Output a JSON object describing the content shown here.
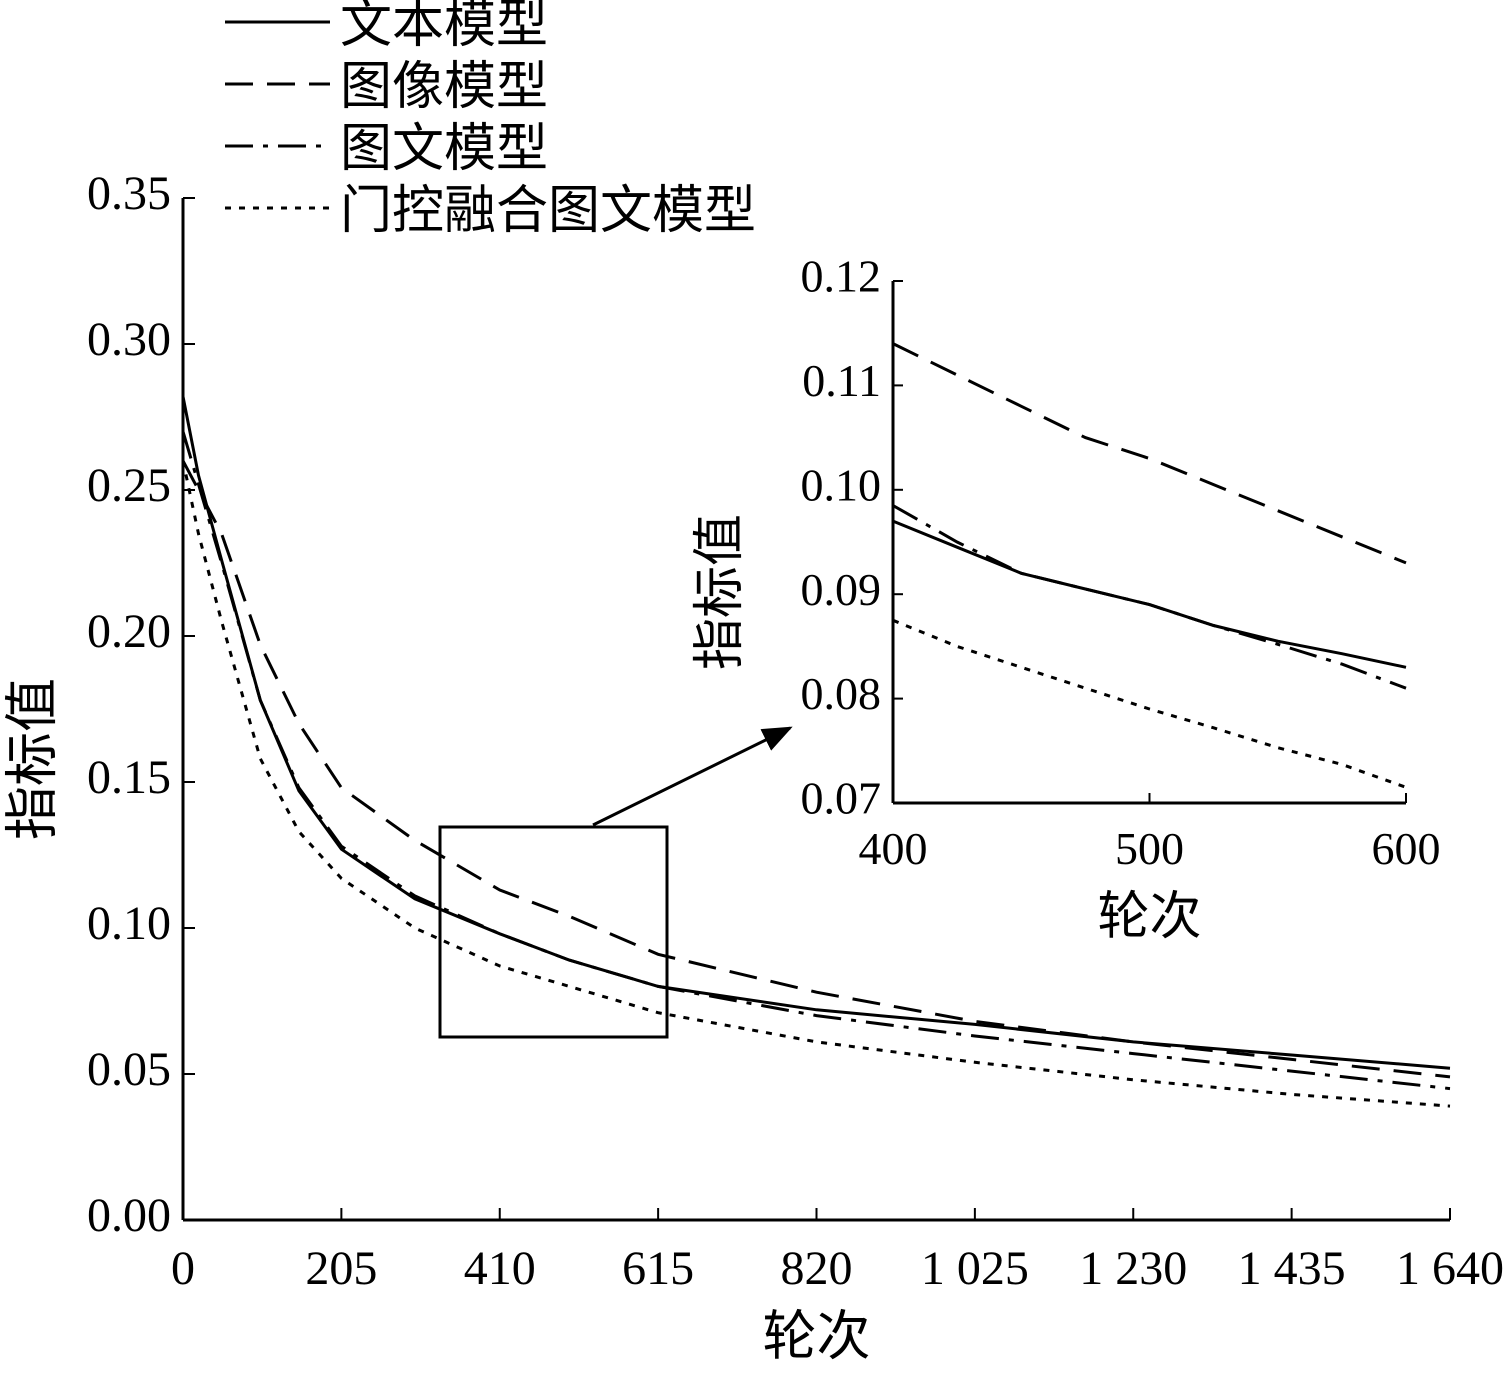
{
  "chart_data": [
    {
      "type": "line",
      "x_label": "轮次",
      "y_label": "指标值",
      "legend": "top-left",
      "color": "#000000",
      "x": [
        0,
        20,
        50,
        100,
        150,
        205,
        300,
        410,
        500,
        615,
        820,
        1025,
        1230,
        1435,
        1640
      ],
      "series": [
        {
          "name": "文本模型",
          "style": "solid",
          "values": [
            0.282,
            0.255,
            0.226,
            0.178,
            0.147,
            0.127,
            0.11,
            0.098,
            0.089,
            0.08,
            0.072,
            0.067,
            0.061,
            0.0565,
            0.052
          ]
        },
        {
          "name": "图像模型",
          "style": "dashed",
          "values": [
            0.26,
            0.25,
            0.235,
            0.197,
            0.17,
            0.148,
            0.13,
            0.113,
            0.104,
            0.091,
            0.078,
            0.068,
            0.061,
            0.055,
            0.049
          ]
        },
        {
          "name": "图文模型",
          "style": "dashdot",
          "values": [
            0.27,
            0.252,
            0.225,
            0.178,
            0.148,
            0.128,
            0.111,
            0.098,
            0.089,
            0.08,
            0.07,
            0.063,
            0.057,
            0.051,
            0.045
          ]
        },
        {
          "name": "门控融合图文模型",
          "style": "dotted",
          "values": [
            0.26,
            0.235,
            0.205,
            0.158,
            0.133,
            0.117,
            0.1,
            0.087,
            0.08,
            0.071,
            0.061,
            0.054,
            0.048,
            0.043,
            0.039
          ]
        }
      ],
      "xlim": [
        0,
        1640
      ],
      "xticks": [
        0,
        205,
        410,
        615,
        820,
        {
          "value": 1025,
          "label": "1 025"
        },
        {
          "value": 1230,
          "label": "1 230"
        },
        {
          "value": 1435,
          "label": "1 435"
        },
        {
          "value": 1640,
          "label": "1 640"
        }
      ],
      "ylim": [
        0,
        0.35
      ],
      "yticks": [
        {
          "value": 0,
          "label": "0.00"
        },
        0.05,
        {
          "value": 0.1,
          "label": "0.10"
        },
        0.15,
        {
          "value": 0.2,
          "label": "0.20"
        },
        0.25,
        {
          "value": 0.3,
          "label": "0.30"
        },
        0.35
      ]
    },
    {
      "type": "line",
      "x_label": "轮次",
      "y_label": "指标值",
      "color": "#000000",
      "x": [
        400,
        425,
        450,
        475,
        500,
        525,
        550,
        575,
        600
      ],
      "series": [
        {
          "style": "solid",
          "values": [
            0.097,
            0.0945,
            0.092,
            0.0905,
            0.089,
            0.087,
            0.0855,
            0.0843,
            0.083
          ]
        },
        {
          "style": "dashed",
          "values": [
            0.114,
            0.111,
            0.108,
            0.105,
            0.103,
            0.1005,
            0.098,
            0.0955,
            0.093
          ]
        },
        {
          "style": "dashdot",
          "values": [
            0.0985,
            0.095,
            0.092,
            0.0905,
            0.089,
            0.087,
            0.0852,
            0.0833,
            0.081
          ]
        },
        {
          "style": "dotted",
          "values": [
            0.0875,
            0.085,
            0.083,
            0.081,
            0.079,
            0.0772,
            0.0753,
            0.0737,
            0.0715
          ]
        }
      ],
      "xlim": [
        400,
        600
      ],
      "xticks": [
        400,
        500,
        600
      ],
      "ylim": [
        0.07,
        0.12
      ],
      "yticks": [
        0.07,
        0.08,
        0.09,
        {
          "value": 0.1,
          "label": "0.10"
        },
        0.11,
        0.12
      ]
    }
  ]
}
